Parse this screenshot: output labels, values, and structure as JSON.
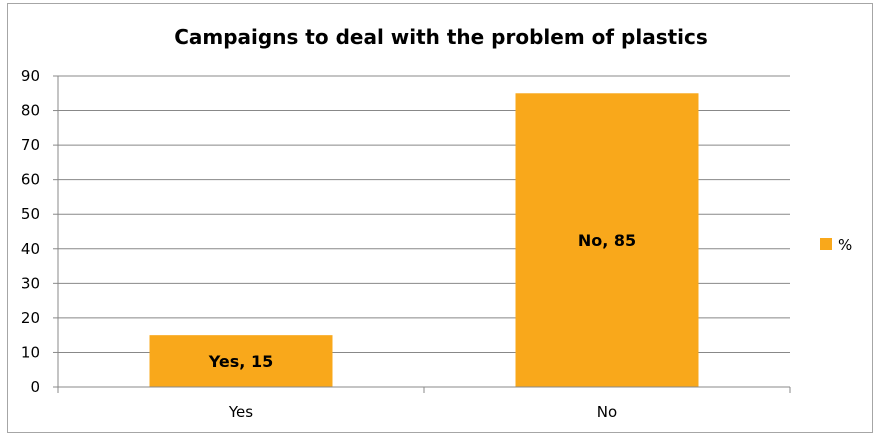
{
  "chart_data": {
    "type": "bar",
    "title": "Campaigns to deal with the problem of plastics",
    "categories": [
      "Yes",
      "No"
    ],
    "series": [
      {
        "name": "%",
        "values": [
          15,
          85
        ]
      }
    ],
    "data_labels": [
      "Yes, 15",
      "No, 85"
    ],
    "ylim": [
      0,
      90
    ],
    "yticks": [
      0,
      10,
      20,
      30,
      40,
      50,
      60,
      70,
      80,
      90
    ],
    "grid": true,
    "legend_position": "right",
    "colors": {
      "bar": "#F9A81B",
      "grid": "#888888",
      "axis": "#888888"
    }
  }
}
